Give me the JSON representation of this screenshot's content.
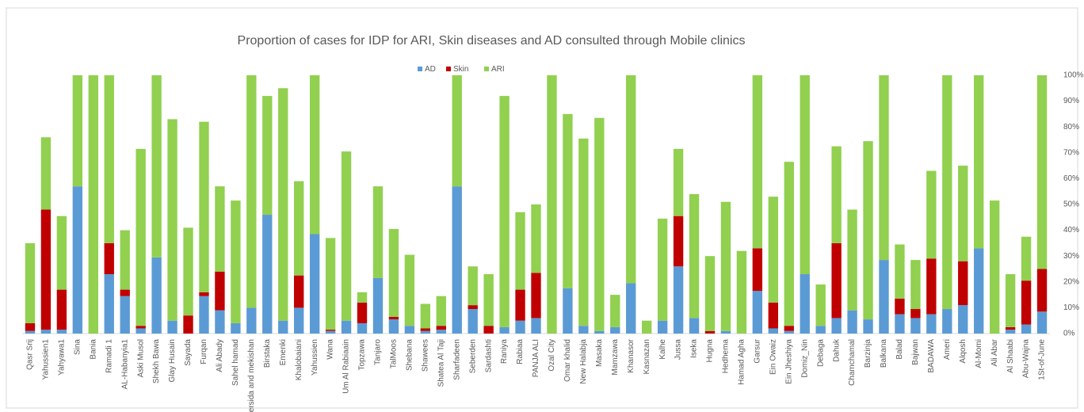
{
  "chart_data": {
    "type": "stacked_bar",
    "title": "Proportion of cases for IDP for ARI, Skin diseases and AD consulted through Mobile clinics",
    "categories": [
      "Qasr Srij",
      "Yahussien1",
      "Yahyawa1",
      "Sina",
      "Bania",
      "Ramadi 1",
      "AL-Habanyia1",
      "Aski Musol",
      "Shekh Bawa",
      "Glay Husain",
      "Sayada",
      "Furqan",
      "Ali Abady",
      "Sahel hamad",
      "Mersida and mekishan",
      "Birstaka",
      "Emenki",
      "Khalobaiani",
      "Yahussien",
      "Wana",
      "Um Al Rabiaain",
      "Topzawa",
      "Tanjaro",
      "TalMoos",
      "Shebana",
      "Shawees",
      "Shatea Al Taji",
      "Sharfadeen",
      "Seberden",
      "Sardashti",
      "Raniya",
      "Rabiaa",
      "PANJA ALI",
      "Ozal City",
      "Omar khalid",
      "New Halabja",
      "Masaka",
      "Mamzawa",
      "Khanasor",
      "Kasnazan",
      "Kalhe",
      "Jussa",
      "Iseka",
      "Hugna",
      "Hedhema",
      "Hamad Agha",
      "Garsur",
      "Ein Owaiz",
      "Ein Jheshiya",
      "Domiz_Nin",
      "Debaga",
      "Dahuk",
      "Chamchamal",
      "Barzinja",
      "Balkana",
      "Balad",
      "Bajwan",
      "BADAWA",
      "Ameri",
      "Alqosh",
      "Al-Momi",
      "Ali Abar",
      "Al Shaabi",
      "Abu-Wajna",
      "1St-of-June"
    ],
    "series": [
      {
        "name": "AD",
        "color": "#5b9bd5",
        "values": [
          1,
          1.5,
          1.5,
          57,
          0,
          23,
          14.5,
          2,
          29.5,
          5,
          0,
          14.5,
          9,
          4,
          10,
          46,
          5,
          10,
          38.5,
          1,
          5,
          4,
          21.5,
          5.5,
          3,
          1,
          1.5,
          57,
          9.5,
          0,
          2.5,
          5,
          6,
          0,
          17.5,
          3,
          1,
          2.5,
          19.5,
          0,
          5,
          26,
          6,
          0,
          1,
          0,
          16.5,
          2,
          1,
          23,
          3,
          6,
          9,
          5.5,
          28.5,
          7.5,
          6,
          7.5,
          9.5,
          11,
          33,
          0,
          1.5,
          3.5,
          8.5
        ]
      },
      {
        "name": "Skin",
        "color": "#c00000",
        "values": [
          3,
          46.5,
          15.5,
          0,
          0,
          12,
          2.5,
          1,
          0,
          0,
          7,
          1.5,
          15,
          0,
          0,
          0,
          0,
          12.5,
          0,
          0.5,
          0,
          8,
          0,
          1,
          0,
          1,
          1.5,
          0,
          1.5,
          3,
          0,
          12,
          17.5,
          0,
          0,
          0,
          0,
          0,
          0,
          0,
          0,
          19.5,
          0,
          1,
          0,
          0,
          16.5,
          10,
          2,
          0,
          0,
          29,
          0,
          0,
          0,
          6,
          3.5,
          21.5,
          0,
          17,
          0,
          0,
          1,
          17,
          16.5
        ]
      },
      {
        "name": "ARI",
        "color": "#92d050",
        "values": [
          31,
          28,
          28.5,
          43,
          100,
          65,
          23,
          68.5,
          70.5,
          78,
          34,
          66,
          33,
          47.5,
          90,
          46,
          90,
          36.5,
          61.5,
          35.5,
          65.5,
          4,
          35.5,
          34,
          27.5,
          9.5,
          11.5,
          43,
          15,
          20,
          89.5,
          30,
          26.5,
          100,
          67.5,
          72.5,
          82.5,
          12.5,
          80.5,
          5,
          39.5,
          26,
          48,
          29,
          50,
          32,
          67,
          41,
          63.5,
          77,
          16,
          37.5,
          39,
          69,
          71.5,
          21,
          19,
          34,
          90.5,
          37,
          67,
          51.5,
          20.5,
          17,
          75
        ]
      }
    ],
    "ylim": [
      0,
      100
    ],
    "yticks": [
      {
        "value": 0,
        "label": "0%"
      },
      {
        "value": 10,
        "label": "10%"
      },
      {
        "value": 20,
        "label": "20%"
      },
      {
        "value": 30,
        "label": "30%"
      },
      {
        "value": 40,
        "label": "40%"
      },
      {
        "value": 50,
        "label": "50%"
      },
      {
        "value": 60,
        "label": "60%"
      },
      {
        "value": 70,
        "label": "70%"
      },
      {
        "value": 80,
        "label": "80%"
      },
      {
        "value": 90,
        "label": "90%"
      },
      {
        "value": 100,
        "label": "100%"
      }
    ],
    "grid": false,
    "legend": "top"
  }
}
